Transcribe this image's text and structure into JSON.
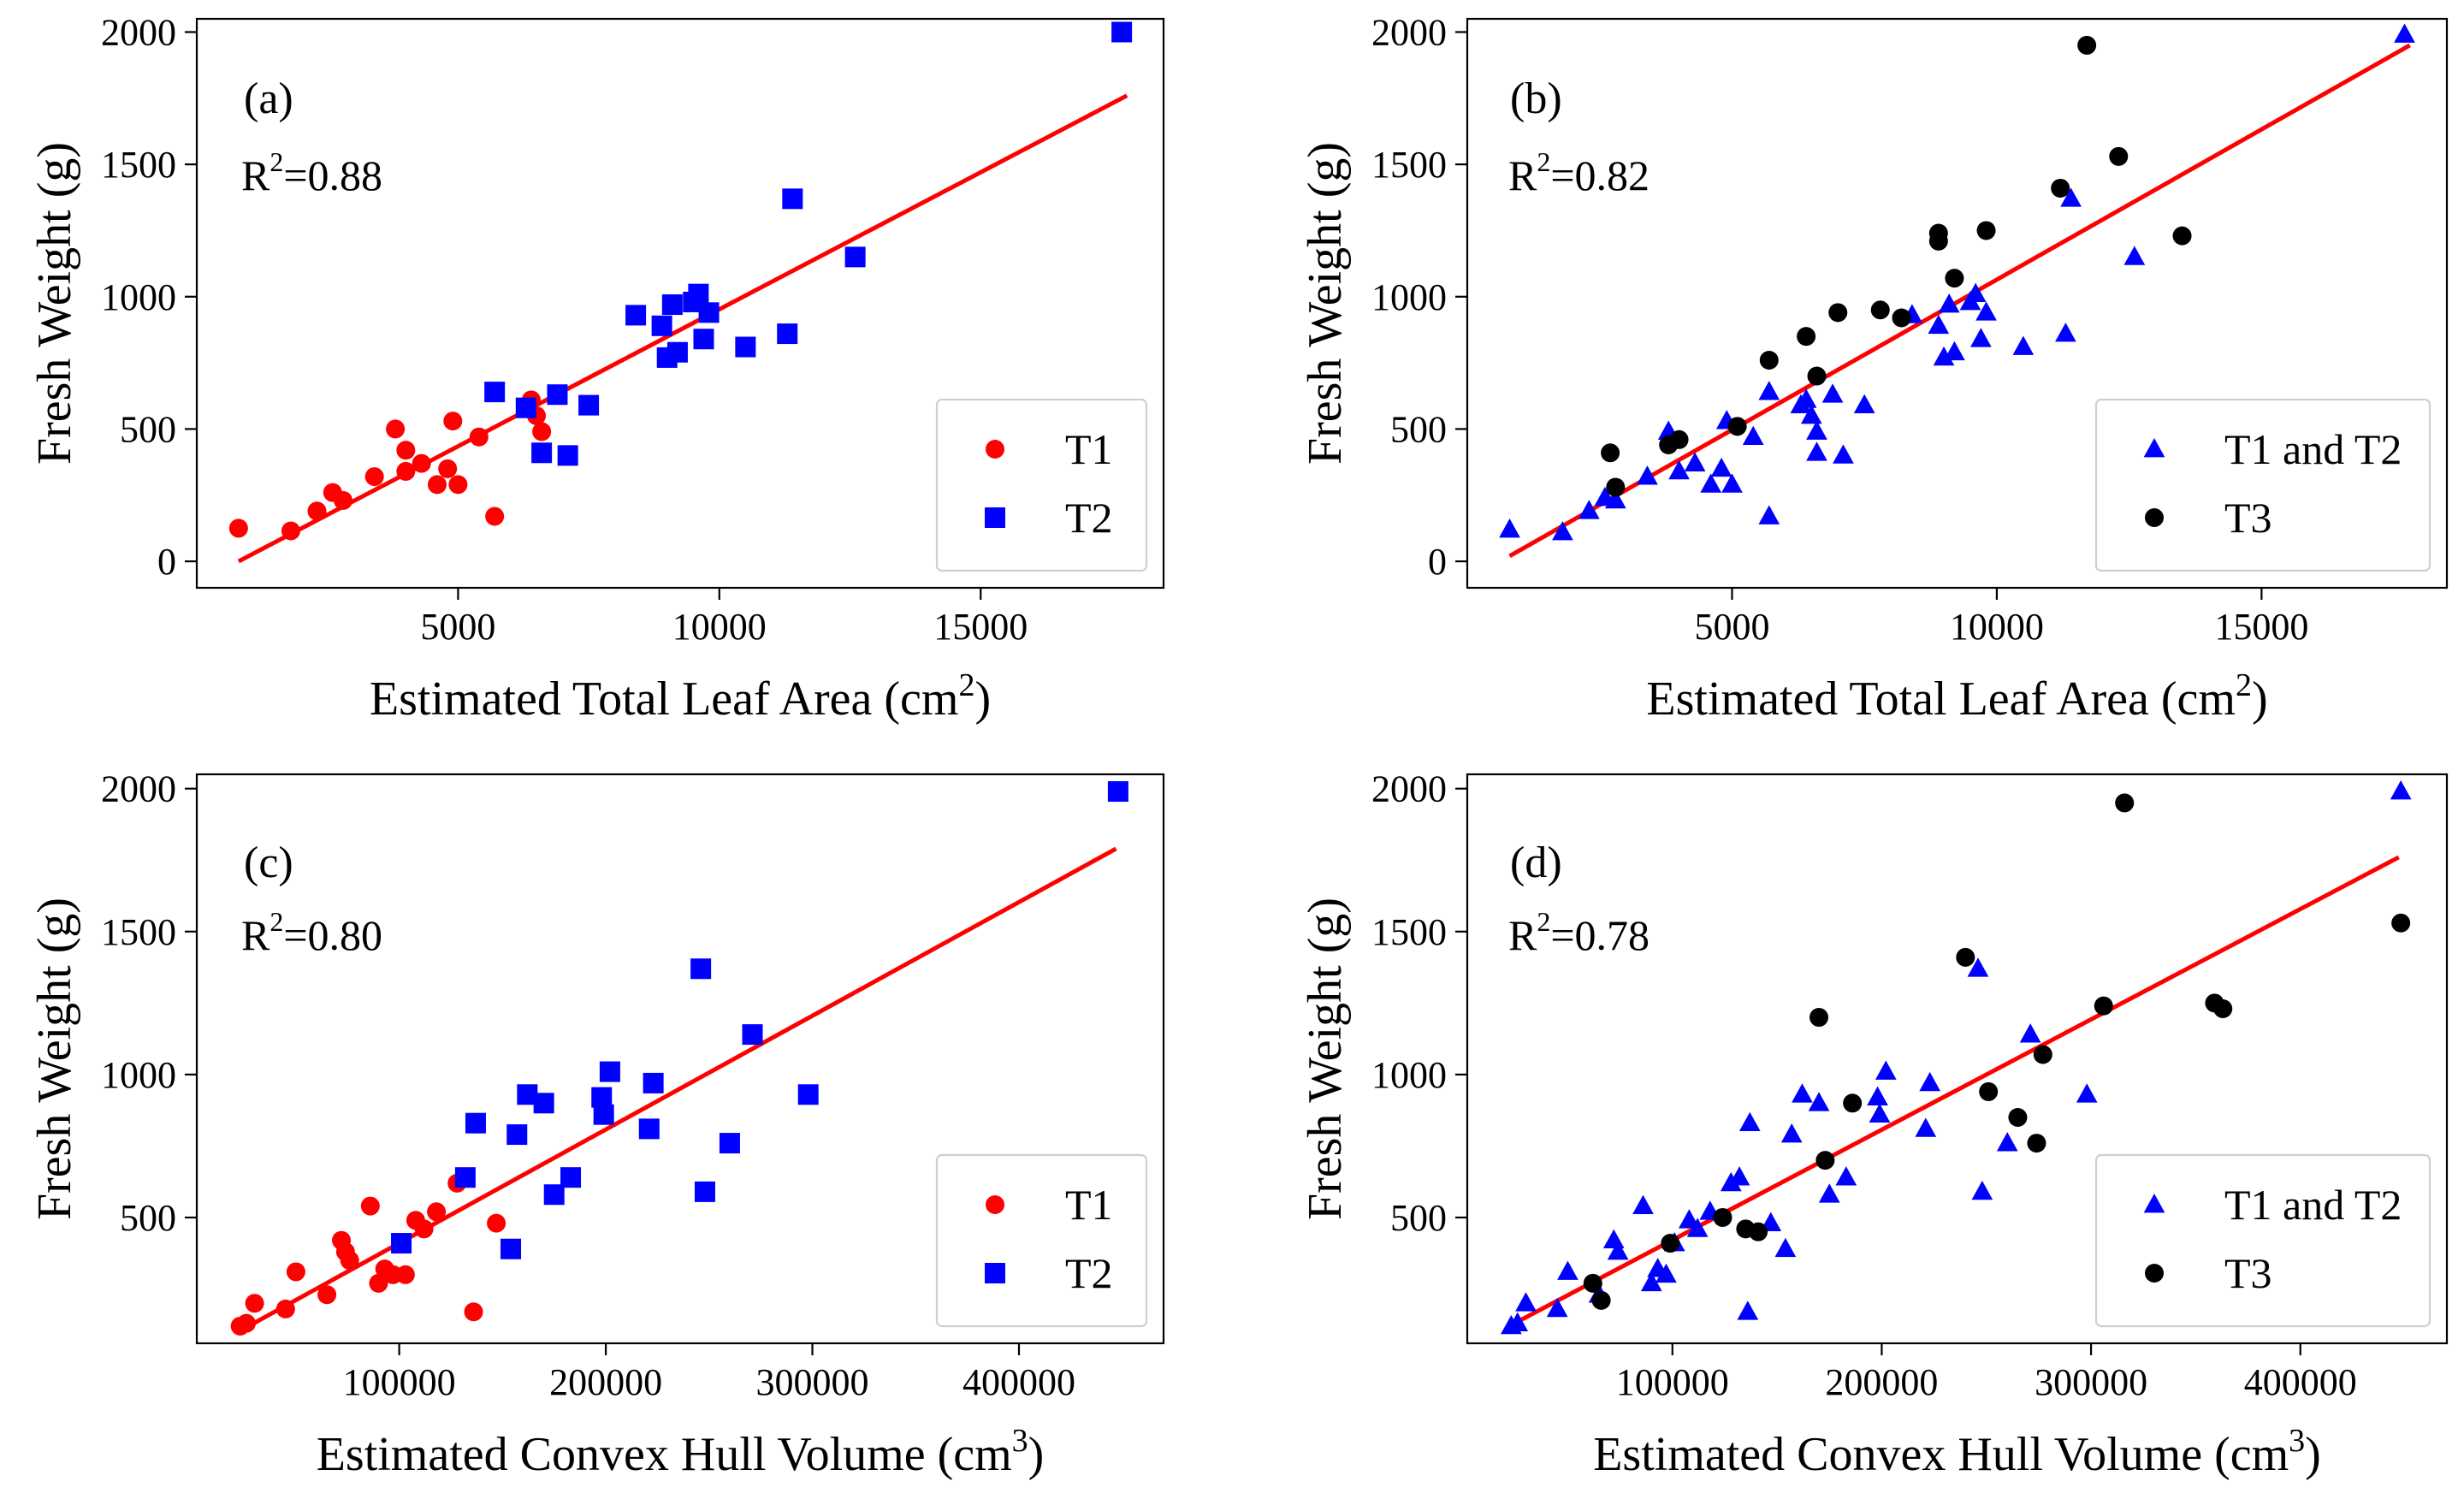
{
  "chart_data": [
    {
      "type": "scatter",
      "panel_label": "(a)",
      "r2_prefix": "R",
      "r2_exp": "2",
      "r2_value": "=0.88",
      "xlabel": "Estimated Total Leaf Area (cm",
      "xlabel_exp": "2",
      "xlabel_suffix": ")",
      "ylabel": "Fresh Weight (g)",
      "xlim": [
        0,
        18500
      ],
      "ylim": [
        -100,
        2050
      ],
      "xticks": [
        5000,
        10000,
        15000
      ],
      "xtick_labels": [
        "5000",
        "10000",
        "15000"
      ],
      "yticks": [
        0,
        500,
        1000,
        1500,
        2000
      ],
      "ytick_labels": [
        "0",
        "500",
        "1000",
        "1500",
        "2000"
      ],
      "legend_position": "bottom-right",
      "fit_line": {
        "x": [
          800,
          17800
        ],
        "y": [
          0,
          1760
        ],
        "color": "#ff0000"
      },
      "series": [
        {
          "name": "T1",
          "marker": "circle",
          "color": "#ff0000",
          "points": [
            [
              800,
              125
            ],
            [
              1800,
              115
            ],
            [
              2300,
              190
            ],
            [
              2600,
              260
            ],
            [
              2800,
              230
            ],
            [
              3400,
              320
            ],
            [
              3800,
              500
            ],
            [
              4000,
              420
            ],
            [
              4000,
              340
            ],
            [
              4300,
              370
            ],
            [
              4600,
              290
            ],
            [
              4800,
              350
            ],
            [
              4900,
              530
            ],
            [
              5000,
              290
            ],
            [
              5400,
              470
            ],
            [
              5700,
              170
            ],
            [
              6400,
              610
            ],
            [
              6500,
              550
            ],
            [
              6600,
              490
            ]
          ]
        },
        {
          "name": "T2",
          "marker": "square",
          "color": "#0000ff",
          "points": [
            [
              5700,
              640
            ],
            [
              6300,
              580
            ],
            [
              6600,
              410
            ],
            [
              6900,
              630
            ],
            [
              7100,
              400
            ],
            [
              7500,
              590
            ],
            [
              8400,
              930
            ],
            [
              8900,
              890
            ],
            [
              9000,
              770
            ],
            [
              9100,
              970
            ],
            [
              9200,
              790
            ],
            [
              9500,
              980
            ],
            [
              9600,
              1010
            ],
            [
              9700,
              840
            ],
            [
              9800,
              940
            ],
            [
              10500,
              810
            ],
            [
              11300,
              860
            ],
            [
              11400,
              1370
            ],
            [
              12600,
              1150
            ],
            [
              17700,
              2000
            ]
          ]
        }
      ]
    },
    {
      "type": "scatter",
      "panel_label": "(b)",
      "r2_prefix": "R",
      "r2_exp": "2",
      "r2_value": "=0.82",
      "xlabel": "Estimated Total Leaf Area (cm",
      "xlabel_exp": "2",
      "xlabel_suffix": ")",
      "ylabel": "Fresh Weight (g)",
      "xlim": [
        0,
        18500
      ],
      "ylim": [
        -100,
        2050
      ],
      "xticks": [
        5000,
        10000,
        15000
      ],
      "xtick_labels": [
        "5000",
        "10000",
        "15000"
      ],
      "yticks": [
        0,
        500,
        1000,
        1500,
        2000
      ],
      "ytick_labels": [
        "0",
        "500",
        "1000",
        "1500",
        "2000"
      ],
      "legend_position": "bottom-right",
      "fit_line": {
        "x": [
          800,
          17800
        ],
        "y": [
          20,
          1950
        ],
        "color": "#ff0000"
      },
      "series": [
        {
          "name": "T1 and T2",
          "marker": "triangle",
          "color": "#0000ff",
          "points": [
            [
              800,
              120
            ],
            [
              1800,
              110
            ],
            [
              2300,
              190
            ],
            [
              2600,
              240
            ],
            [
              2800,
              230
            ],
            [
              3400,
              320
            ],
            [
              3800,
              490
            ],
            [
              4000,
              340
            ],
            [
              4300,
              370
            ],
            [
              4600,
              290
            ],
            [
              4800,
              350
            ],
            [
              4900,
              530
            ],
            [
              5000,
              290
            ],
            [
              5400,
              470
            ],
            [
              5700,
              170
            ],
            [
              5700,
              640
            ],
            [
              6300,
              590
            ],
            [
              6400,
              610
            ],
            [
              6500,
              550
            ],
            [
              6600,
              410
            ],
            [
              6600,
              490
            ],
            [
              6900,
              630
            ],
            [
              7100,
              400
            ],
            [
              7500,
              590
            ],
            [
              8400,
              930
            ],
            [
              8900,
              890
            ],
            [
              9000,
              770
            ],
            [
              9100,
              970
            ],
            [
              9200,
              790
            ],
            [
              9500,
              980
            ],
            [
              9600,
              1010
            ],
            [
              9700,
              840
            ],
            [
              9800,
              940
            ],
            [
              10500,
              810
            ],
            [
              11300,
              860
            ],
            [
              11400,
              1370
            ],
            [
              12600,
              1150
            ],
            [
              17700,
              1990
            ]
          ]
        },
        {
          "name": "T3",
          "marker": "circle",
          "color": "#000000",
          "points": [
            [
              2700,
              410
            ],
            [
              2800,
              280
            ],
            [
              3800,
              440
            ],
            [
              4000,
              460
            ],
            [
              5100,
              510
            ],
            [
              5700,
              760
            ],
            [
              6400,
              850
            ],
            [
              6600,
              700
            ],
            [
              7000,
              940
            ],
            [
              7800,
              950
            ],
            [
              8200,
              920
            ],
            [
              8900,
              1240
            ],
            [
              8900,
              1210
            ],
            [
              9200,
              1070
            ],
            [
              9800,
              1250
            ],
            [
              11200,
              1410
            ],
            [
              11700,
              1950
            ],
            [
              12300,
              1530
            ],
            [
              13500,
              1230
            ]
          ]
        }
      ]
    },
    {
      "type": "scatter",
      "panel_label": "(c)",
      "r2_prefix": "R",
      "r2_exp": "2",
      "r2_value": "=0.80",
      "xlabel": "Estimated Convex Hull Volume (cm",
      "xlabel_exp": "3",
      "xlabel_suffix": ")",
      "ylabel": "Fresh Weight (g)",
      "xlim": [
        2000,
        470000
      ],
      "ylim": [
        60,
        2050
      ],
      "xticks": [
        100000,
        200000,
        300000,
        400000
      ],
      "xtick_labels": [
        "100000",
        "200000",
        "300000",
        "400000"
      ],
      "yticks": [
        500,
        1000,
        1500,
        2000
      ],
      "ytick_labels": [
        "500",
        "1000",
        "1500",
        "2000"
      ],
      "legend_position": "bottom-right",
      "fit_line": {
        "x": [
          22000,
          447000
        ],
        "y": [
          100,
          1790
        ],
        "color": "#ff0000"
      },
      "series": [
        {
          "name": "T1",
          "marker": "circle",
          "color": "#ff0000",
          "points": [
            [
              23000,
              120
            ],
            [
              26000,
              130
            ],
            [
              30000,
              200
            ],
            [
              45000,
              180
            ],
            [
              50000,
              310
            ],
            [
              65000,
              230
            ],
            [
              72000,
              420
            ],
            [
              74000,
              380
            ],
            [
              76000,
              350
            ],
            [
              86000,
              540
            ],
            [
              90000,
              270
            ],
            [
              93000,
              320
            ],
            [
              97000,
              300
            ],
            [
              103000,
              300
            ],
            [
              108000,
              490
            ],
            [
              112000,
              460
            ],
            [
              118000,
              520
            ],
            [
              128000,
              620
            ],
            [
              136000,
              170
            ],
            [
              147000,
              480
            ]
          ]
        },
        {
          "name": "T2",
          "marker": "square",
          "color": "#0000ff",
          "points": [
            [
              101000,
              410
            ],
            [
              132000,
              640
            ],
            [
              137000,
              830
            ],
            [
              157000,
              790
            ],
            [
              162000,
              930
            ],
            [
              170000,
              900
            ],
            [
              175000,
              580
            ],
            [
              183000,
              640
            ],
            [
              198000,
              920
            ],
            [
              199000,
              860
            ],
            [
              202000,
              1010
            ],
            [
              221000,
              810
            ],
            [
              223000,
              970
            ],
            [
              246000,
              1370
            ],
            [
              248000,
              590
            ],
            [
              260000,
              760
            ],
            [
              271000,
              1140
            ],
            [
              298000,
              930
            ],
            [
              154000,
              390
            ],
            [
              448000,
              1990
            ]
          ]
        }
      ]
    },
    {
      "type": "scatter",
      "panel_label": "(d)",
      "r2_prefix": "R",
      "r2_exp": "2",
      "r2_value": "=0.78",
      "xlabel": "Estimated Convex Hull Volume (cm",
      "xlabel_exp": "3",
      "xlabel_suffix": ")",
      "ylabel": "Fresh Weight (g)",
      "xlim": [
        2000,
        470000
      ],
      "ylim": [
        60,
        2050
      ],
      "xticks": [
        100000,
        200000,
        300000,
        400000
      ],
      "xtick_labels": [
        "100000",
        "200000",
        "300000",
        "400000"
      ],
      "yticks": [
        500,
        1000,
        1500,
        2000
      ],
      "ytick_labels": [
        "500",
        "1000",
        "1500",
        "2000"
      ],
      "legend_position": "bottom-right",
      "fit_line": {
        "x": [
          22000,
          447000
        ],
        "y": [
          120,
          1760
        ],
        "color": "#ff0000"
      },
      "series": [
        {
          "name": "T1 and T2",
          "marker": "triangle",
          "color": "#0000ff",
          "points": [
            [
              23000,
              120
            ],
            [
              26000,
              130
            ],
            [
              30000,
              200
            ],
            [
              45000,
              180
            ],
            [
              50000,
              310
            ],
            [
              65000,
              230
            ],
            [
              72000,
              420
            ],
            [
              74000,
              380
            ],
            [
              86000,
              540
            ],
            [
              90000,
              270
            ],
            [
              93000,
              320
            ],
            [
              97000,
              300
            ],
            [
              101000,
              410
            ],
            [
              108000,
              490
            ],
            [
              112000,
              460
            ],
            [
              118000,
              520
            ],
            [
              128000,
              620
            ],
            [
              132000,
              640
            ],
            [
              136000,
              170
            ],
            [
              137000,
              830
            ],
            [
              147000,
              480
            ],
            [
              154000,
              390
            ],
            [
              157000,
              790
            ],
            [
              162000,
              930
            ],
            [
              170000,
              900
            ],
            [
              175000,
              580
            ],
            [
              183000,
              640
            ],
            [
              198000,
              920
            ],
            [
              199000,
              860
            ],
            [
              202000,
              1010
            ],
            [
              221000,
              810
            ],
            [
              223000,
              970
            ],
            [
              246000,
              1370
            ],
            [
              248000,
              590
            ],
            [
              260000,
              760
            ],
            [
              271000,
              1140
            ],
            [
              298000,
              930
            ],
            [
              448000,
              1990
            ]
          ]
        },
        {
          "name": "T3",
          "marker": "circle",
          "color": "#000000",
          "points": [
            [
              62000,
              270
            ],
            [
              66000,
              210
            ],
            [
              99000,
              410
            ],
            [
              124000,
              500
            ],
            [
              135000,
              460
            ],
            [
              141000,
              450
            ],
            [
              170000,
              1200
            ],
            [
              173000,
              700
            ],
            [
              186000,
              900
            ],
            [
              240000,
              1410
            ],
            [
              251000,
              940
            ],
            [
              265000,
              850
            ],
            [
              274000,
              760
            ],
            [
              277000,
              1070
            ],
            [
              306000,
              1240
            ],
            [
              316000,
              1950
            ],
            [
              359000,
              1250
            ],
            [
              363000,
              1230
            ],
            [
              448000,
              1530
            ]
          ]
        }
      ]
    }
  ]
}
